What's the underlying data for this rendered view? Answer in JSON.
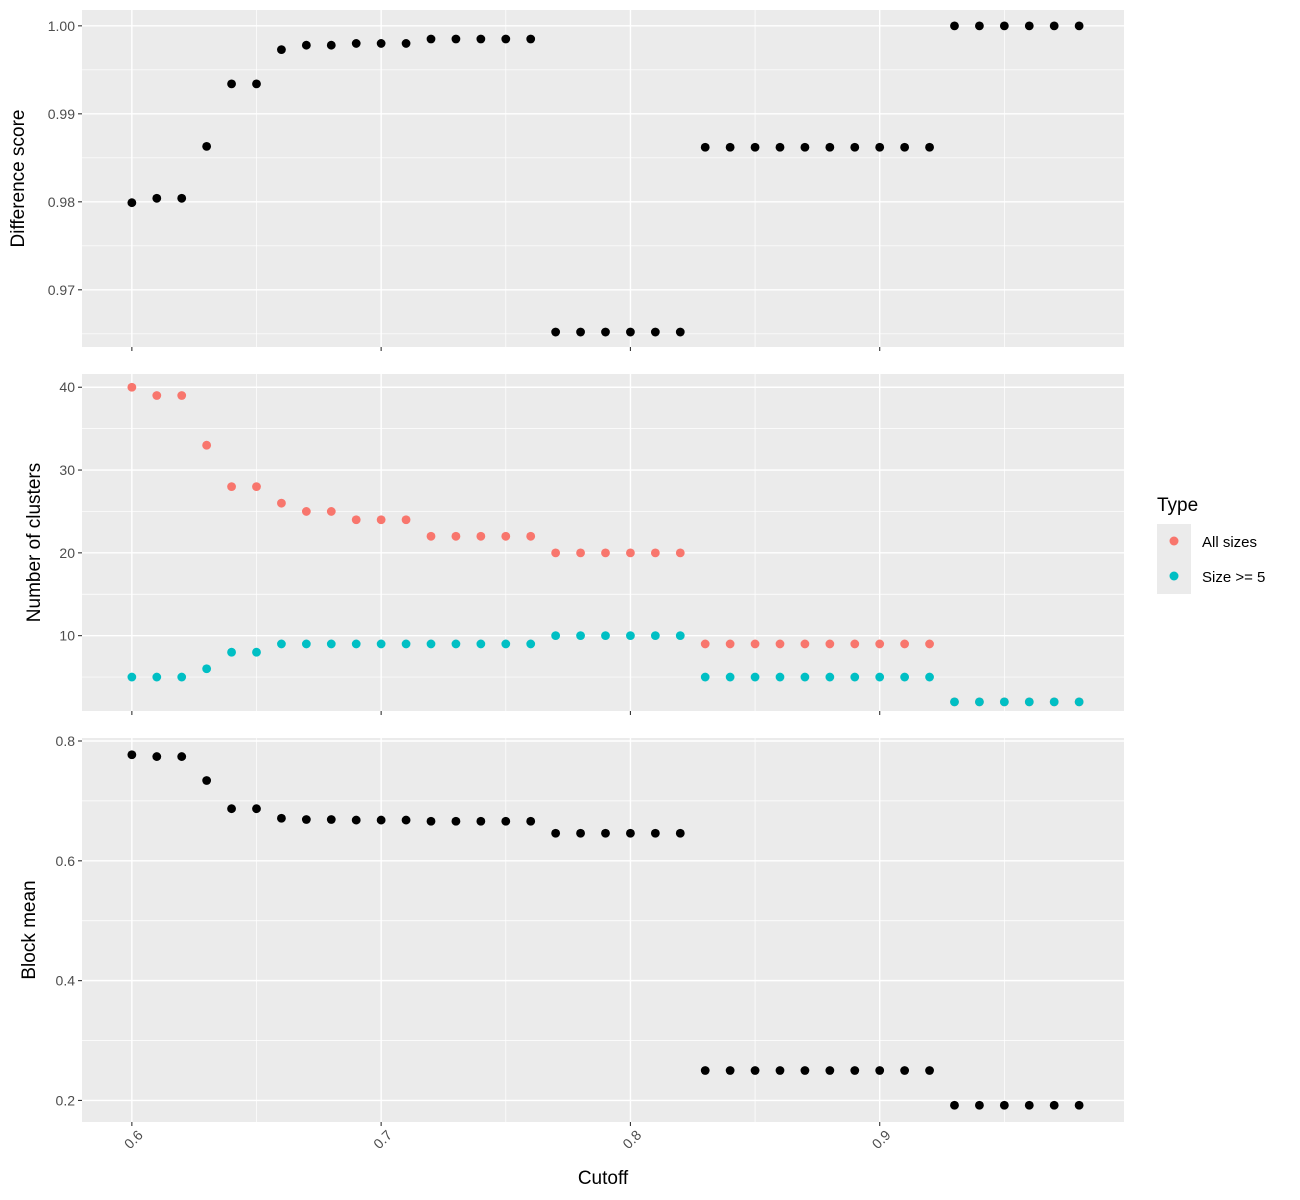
{
  "chart_data": [
    {
      "type": "scatter",
      "panel": "top",
      "ylabel": "Difference score",
      "xlim": [
        0.58,
        0.998
      ],
      "ylim": [
        0.9635,
        1.0018
      ],
      "yticks": [
        0.97,
        0.98,
        0.99,
        1.0
      ],
      "ytick_labels": [
        "0.97",
        "0.98",
        "0.99",
        "1.00"
      ],
      "grid": true,
      "point_color": "#000000",
      "x": [
        0.6,
        0.61,
        0.62,
        0.63,
        0.64,
        0.65,
        0.66,
        0.67,
        0.68,
        0.69,
        0.7,
        0.71,
        0.72,
        0.73,
        0.74,
        0.75,
        0.76,
        0.77,
        0.78,
        0.79,
        0.8,
        0.81,
        0.82,
        0.83,
        0.84,
        0.85,
        0.86,
        0.87,
        0.88,
        0.89,
        0.9,
        0.91,
        0.92,
        0.93,
        0.94,
        0.95,
        0.96,
        0.97,
        0.98
      ],
      "y": [
        0.9799,
        0.9804,
        0.9804,
        0.9863,
        0.9934,
        0.9934,
        0.9973,
        0.9978,
        0.9978,
        0.998,
        0.998,
        0.998,
        0.9985,
        0.9985,
        0.9985,
        0.9985,
        0.9985,
        0.9652,
        0.9652,
        0.9652,
        0.9652,
        0.9652,
        0.9652,
        0.9862,
        0.9862,
        0.9862,
        0.9862,
        0.9862,
        0.9862,
        0.9862,
        0.9862,
        0.9862,
        0.9862,
        1.0,
        1.0,
        1.0,
        1.0,
        1.0,
        1.0
      ]
    },
    {
      "type": "scatter",
      "panel": "middle",
      "ylabel": "Number of clusters",
      "xlim": [
        0.58,
        0.998
      ],
      "ylim": [
        0.9,
        41.6
      ],
      "yticks": [
        10,
        20,
        30,
        40
      ],
      "ytick_labels": [
        "10",
        "20",
        "30",
        "40"
      ],
      "grid": true,
      "legend": {
        "title": "Type",
        "placement": "right"
      },
      "x": [
        0.6,
        0.61,
        0.62,
        0.63,
        0.64,
        0.65,
        0.66,
        0.67,
        0.68,
        0.69,
        0.7,
        0.71,
        0.72,
        0.73,
        0.74,
        0.75,
        0.76,
        0.77,
        0.78,
        0.79,
        0.8,
        0.81,
        0.82,
        0.83,
        0.84,
        0.85,
        0.86,
        0.87,
        0.88,
        0.89,
        0.9,
        0.91,
        0.92,
        0.93,
        0.94,
        0.95,
        0.96,
        0.97,
        0.98
      ],
      "series": [
        {
          "name": "All sizes",
          "color": "#F8766D",
          "values": [
            40,
            39,
            39,
            33,
            28,
            28,
            26,
            25,
            25,
            24,
            24,
            24,
            22,
            22,
            22,
            22,
            22,
            20,
            20,
            20,
            20,
            20,
            20,
            9,
            9,
            9,
            9,
            9,
            9,
            9,
            9,
            9,
            9,
            2,
            2,
            2,
            2,
            2,
            2
          ]
        },
        {
          "name": "Size >= 5",
          "color": "#00BFC4",
          "values": [
            5,
            5,
            5,
            6,
            8,
            8,
            9,
            9,
            9,
            9,
            9,
            9,
            9,
            9,
            9,
            9,
            9,
            10,
            10,
            10,
            10,
            10,
            10,
            5,
            5,
            5,
            5,
            5,
            5,
            5,
            5,
            5,
            5,
            2,
            2,
            2,
            2,
            2,
            2
          ]
        }
      ]
    },
    {
      "type": "scatter",
      "panel": "bottom",
      "ylabel": "Block mean",
      "xlabel": "Cutoff",
      "xlim": [
        0.58,
        0.998
      ],
      "ylim": [
        0.164,
        0.805
      ],
      "yticks": [
        0.2,
        0.4,
        0.6,
        0.8
      ],
      "ytick_labels": [
        "0.2",
        "0.4",
        "0.6",
        "0.8"
      ],
      "xticks": [
        0.6,
        0.7,
        0.8,
        0.9
      ],
      "xtick_labels": [
        "0.6",
        "0.7",
        "0.8",
        "0.9"
      ],
      "grid": true,
      "point_color": "#000000",
      "x": [
        0.6,
        0.61,
        0.62,
        0.63,
        0.64,
        0.65,
        0.66,
        0.67,
        0.68,
        0.69,
        0.7,
        0.71,
        0.72,
        0.73,
        0.74,
        0.75,
        0.76,
        0.77,
        0.78,
        0.79,
        0.8,
        0.81,
        0.82,
        0.83,
        0.84,
        0.85,
        0.86,
        0.87,
        0.88,
        0.89,
        0.9,
        0.91,
        0.92,
        0.93,
        0.94,
        0.95,
        0.96,
        0.97,
        0.98
      ],
      "y": [
        0.777,
        0.774,
        0.774,
        0.734,
        0.687,
        0.687,
        0.671,
        0.669,
        0.669,
        0.668,
        0.668,
        0.668,
        0.666,
        0.666,
        0.666,
        0.666,
        0.666,
        0.646,
        0.646,
        0.646,
        0.646,
        0.646,
        0.646,
        0.25,
        0.25,
        0.25,
        0.25,
        0.25,
        0.25,
        0.25,
        0.25,
        0.25,
        0.25,
        0.192,
        0.192,
        0.192,
        0.192,
        0.192,
        0.192
      ]
    }
  ],
  "colors": {
    "panel_background": "#EBEBEB",
    "grid": "#FFFFFF",
    "tick_text": "#4D4D4D",
    "axis_tick": "#333333"
  }
}
